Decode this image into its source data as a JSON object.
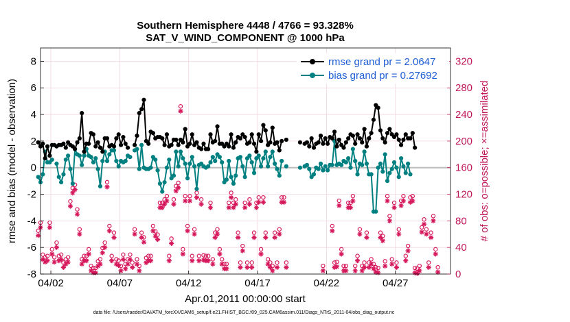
{
  "chart_data": {
    "type": "line",
    "title_line1": "Southern Hemisphere 4448 / 4766 = 93.328%",
    "title_line2": "SAT_V_WIND_COMPONENT @ 1000 hPa",
    "xlabel": "Apr.01,2011 00:00:00 start",
    "ylabel_left": "rmse and bias (model - observation)",
    "ylabel_right": "# of obs: o=possible; ×=assimilated",
    "footer": "data file: /Users/raeder/DAI/ATM_forcXX/CAM6_setup/f.e21.FHIST_BGC.f09_025.CAM6assim.011/Diags_NTrS_2011-04/obs_diag_output.nc",
    "x_tick_labels": [
      "04/02",
      "04/07",
      "04/12",
      "04/17",
      "04/22",
      "04/27"
    ],
    "x_tick_days": [
      2,
      7,
      12,
      17,
      22,
      27
    ],
    "xlim_days": [
      1.25,
      31.0
    ],
    "ylim_left": [
      -8,
      9
    ],
    "yticks_left": [
      "-8",
      "-6",
      "-4",
      "-2",
      "0",
      "2",
      "4",
      "6",
      "8"
    ],
    "ylim_right": [
      0,
      340
    ],
    "yticks_right": [
      "0",
      "40",
      "80",
      "120",
      "160",
      "200",
      "240",
      "280",
      "320"
    ],
    "legend_position": "top-right",
    "colors": {
      "rmse": "#000000",
      "bias": "#008080",
      "obs": "#d6195c",
      "right_axis": "#c0185a",
      "legend_text": "#1f5fd6",
      "zero_line": "#bcbcbc"
    },
    "series": [
      {
        "name": "rmse grand pr = 2.0647",
        "values": [
          1.9,
          1.6,
          1.8,
          0.7,
          1.6,
          0.9,
          1.7,
          1.7,
          1.6,
          1.7,
          1.7,
          1.8,
          1.5,
          1.9,
          1.7,
          1.6,
          1.4,
          1.9,
          2.2,
          4.1,
          1.2,
          1.8,
          1.8,
          2.6,
          2.5,
          1.6,
          1.9,
          1.5,
          1.2,
          2.2,
          2.2,
          1.6,
          1.7,
          1.6,
          2.2,
          2.5,
          1.7,
          2.3,
          1.8,
          1.5,
          null,
          null,
          1.7,
          2.4,
          4.1,
          4.4,
          5.1,
          2.0,
          1.8,
          2.7,
          2.6,
          2.2,
          2.3,
          2.3,
          2.2,
          1.7,
          2.5,
          1.6,
          1.7,
          2.1,
          2.1,
          1.7,
          2.1,
          1.9,
          2.9,
          1.6,
          1.8,
          2.5,
          1.7,
          1.9,
          1.5,
          1.4,
          1.8,
          1.4,
          1.4,
          2.5,
          1.9,
          2.0,
          3.1,
          1.8,
          1.8,
          1.6,
          1.8,
          1.6,
          2.5,
          1.5,
          1.9,
          2.3,
          2.2,
          2.5,
          2.3,
          1.8,
          1.9,
          2.5,
          1.8,
          1.2,
          2.5,
          2.0,
          3.2,
          2.8,
          1.7,
          1.9,
          3.0,
          1.8,
          1.9,
          1.3,
          2.0,
          null,
          2.1,
          null,
          null,
          null,
          null,
          null,
          1.9,
          null,
          1.8,
          1.9,
          1.6,
          2.2,
          1.5,
          1.8,
          1.9,
          2.4,
          1.8,
          2.2,
          1.8,
          2.3,
          2.2,
          2.7,
          1.6,
          2.1,
          1.7,
          1.5,
          1.9,
          2.2,
          2.5,
          2.4,
          1.8,
          2.5,
          2.2,
          1.9,
          2.9,
          1.6,
          2.2,
          2.6,
          3.6,
          4.7,
          4.5,
          2.8,
          2.2,
          1.9,
          2.6,
          2.9,
          2.5,
          2.3,
          2.5,
          2.1,
          1.7,
          2.1,
          2.5,
          2.2,
          2.2,
          2.6,
          1.5
        ]
      },
      {
        "name": "bias grand pr = 0.27692",
        "values": [
          -0.7,
          -1.1,
          -0.5,
          1.2,
          0.4,
          0.4,
          0.6,
          null,
          0.3,
          -0.7,
          -1.1,
          -0.5,
          0.6,
          0.9,
          -0.1,
          -1.2,
          1.4,
          1.0,
          0.9,
          0.2,
          0.9,
          1.4,
          0.9,
          0.8,
          0.4,
          0.7,
          -0.1,
          -1.4,
          0.5,
          1.2,
          0.5,
          1.0,
          1.3,
          1.3,
          0.5,
          0.1,
          0.5,
          0.4,
          0.5,
          0.9,
          0.8,
          null,
          1.3,
          1.4,
          -0.1,
          1.7,
          0.0,
          -0.1,
          -0.1,
          0.0,
          0.8,
          0.6,
          -0.2,
          -1.2,
          -1.8,
          -1.1,
          0.0,
          0.6,
          -0.8,
          -0.6,
          1.2,
          0.1,
          1.2,
          0.7,
          0.3,
          -0.8,
          0.3,
          0.8,
          0.1,
          -1.6,
          0.2,
          0.3,
          0.1,
          0.0,
          0.1,
          0.4,
          0.8,
          0.5,
          1.0,
          0.8,
          0.4,
          -1.1,
          -0.9,
          0.5,
          -0.7,
          -1.2,
          -0.6,
          0.7,
          0.8,
          0.1,
          -0.7,
          0.7,
          0.9,
          0.4,
          -0.4,
          0.7,
          0.9,
          0.1,
          0.7,
          1.2,
          0.1,
          0.8,
          1.2,
          0.3,
          -0.1,
          -0.6,
          0.5,
          null,
          0.1,
          null,
          null,
          null,
          null,
          null,
          0.0,
          null,
          0.1,
          0.2,
          -0.1,
          -0.7,
          -0.5,
          0.0,
          -0.1,
          0.3,
          -0.2,
          0.1,
          -0.2,
          0.2,
          0.2,
          2.0,
          0.2,
          0.3,
          0.2,
          0.5,
          0.4,
          0.7,
          0.0,
          1.4,
          0.5,
          -0.5,
          0.3,
          0.2,
          1.2,
          0.3,
          -0.5,
          -0.5,
          -3.3,
          -3.3,
          0.0,
          0.3,
          -0.3,
          1.0,
          -1.0,
          -0.4,
          -0.1,
          0.4,
          0.0,
          -0.7,
          0.7,
          0.1,
          -0.4,
          0.3,
          -0.5
        ]
      }
    ],
    "obs_possible": [
      58,
      70,
      22,
      18,
      20,
      70,
      30,
      18,
      40,
      20,
      22,
      10,
      15,
      18,
      102,
      122,
      127,
      90,
      60,
      15,
      20,
      20,
      30,
      5,
      2,
      2,
      12,
      15,
      32,
      40,
      131,
      65,
      20,
      55,
      15,
      13,
      5,
      22,
      8,
      15,
      22,
      10,
      60,
      15,
      5,
      55,
      48,
      17,
      20,
      20,
      65,
      57,
      52,
      100,
      100,
      105,
      110,
      20,
      46,
      105,
      125,
      130,
      245,
      30,
      110,
      65,
      110,
      20,
      60,
      115,
      20,
      105,
      21,
      20,
      20,
      100,
      15,
      55,
      60,
      30,
      15,
      8,
      8,
      100,
      115,
      100,
      105,
      55,
      10,
      35,
      100,
      10,
      105,
      10,
      55,
      100,
      108,
      30,
      108,
      55,
      15,
      10,
      5,
      55,
      10,
      60,
      108,
      108,
      10,
      null,
      null,
      null,
      null,
      null,
      null,
      null,
      null,
      null,
      null,
      null,
      null,
      null,
      null,
      null,
      5,
      null,
      null,
      null,
      65,
      10,
      11,
      103,
      30,
      5,
      5,
      100,
      100,
      110,
      5,
      20,
      60,
      5,
      10,
      55,
      10,
      15,
      8,
      3,
      2,
      55,
      50,
      12,
      110,
      80,
      15,
      100,
      10,
      60,
      103,
      110,
      20,
      35,
      108,
      110,
      2,
      1,
      5,
      63,
      75,
      60,
      10,
      55,
      80,
      30,
      3
    ]
  }
}
